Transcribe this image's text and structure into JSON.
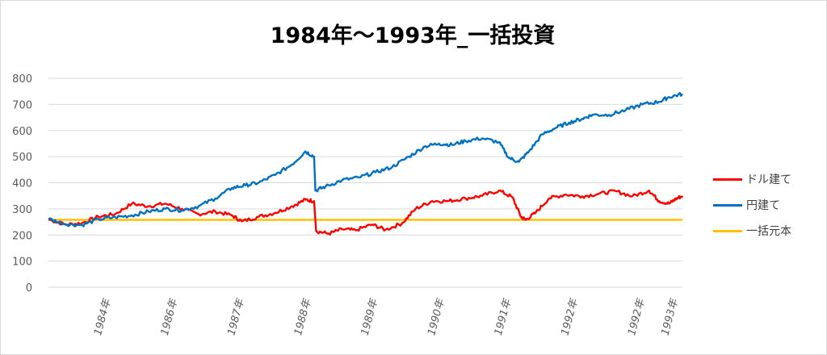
{
  "chart_data": {
    "type": "line",
    "title": "1984年～1993年_一括投資",
    "xlabel": "",
    "ylabel": "",
    "ylim": [
      0,
      800
    ],
    "yticks": [
      0,
      100,
      200,
      300,
      400,
      500,
      600,
      700,
      800
    ],
    "xlim": [
      1983.7,
      1993.2
    ],
    "xtick_labels": [
      {
        "label": "1984年",
        "x": 1984.7
      },
      {
        "label": "1986年",
        "x": 1985.7
      },
      {
        "label": "1987年",
        "x": 1986.7
      },
      {
        "label": "1988年",
        "x": 1987.7
      },
      {
        "label": "1989年",
        "x": 1988.7
      },
      {
        "label": "1990年",
        "x": 1989.7
      },
      {
        "label": "1991年",
        "x": 1990.7
      },
      {
        "label": "1992年",
        "x": 1991.7
      },
      {
        "label": "1992年",
        "x": 1992.7
      },
      {
        "label": "1993年",
        "x": 1993.2
      }
    ],
    "grid": true,
    "legend_position": "right",
    "series": [
      {
        "name": "ドル建て",
        "color": "#ff0000",
        "points": [
          [
            1983.7,
            260
          ],
          [
            1983.95,
            240
          ],
          [
            1984.2,
            245
          ],
          [
            1984.45,
            270
          ],
          [
            1984.7,
            280
          ],
          [
            1984.95,
            320
          ],
          [
            1985.2,
            310
          ],
          [
            1985.45,
            320
          ],
          [
            1985.7,
            300
          ],
          [
            1985.95,
            280
          ],
          [
            1986.2,
            290
          ],
          [
            1986.45,
            275
          ],
          [
            1986.6,
            252
          ],
          [
            1986.85,
            270
          ],
          [
            1987.1,
            285
          ],
          [
            1987.35,
            310
          ],
          [
            1987.55,
            335
          ],
          [
            1987.68,
            330
          ],
          [
            1987.71,
            215
          ],
          [
            1987.9,
            205
          ],
          [
            1988.1,
            222
          ],
          [
            1988.3,
            218
          ],
          [
            1988.55,
            240
          ],
          [
            1988.75,
            220
          ],
          [
            1989.0,
            245
          ],
          [
            1989.2,
            300
          ],
          [
            1989.45,
            330
          ],
          [
            1989.7,
            330
          ],
          [
            1989.95,
            340
          ],
          [
            1990.2,
            350
          ],
          [
            1990.45,
            370
          ],
          [
            1990.65,
            345
          ],
          [
            1990.78,
            270
          ],
          [
            1990.85,
            258
          ],
          [
            1991.0,
            285
          ],
          [
            1991.2,
            340
          ],
          [
            1991.45,
            355
          ],
          [
            1991.7,
            348
          ],
          [
            1991.95,
            358
          ],
          [
            1992.2,
            368
          ],
          [
            1992.45,
            348
          ],
          [
            1992.7,
            370
          ],
          [
            1992.85,
            330
          ],
          [
            1993.0,
            320
          ],
          [
            1993.1,
            338
          ],
          [
            1993.2,
            350
          ]
        ]
      },
      {
        "name": "円建て",
        "color": "#0070c0",
        "points": [
          [
            1983.7,
            262
          ],
          [
            1983.95,
            242
          ],
          [
            1984.2,
            238
          ],
          [
            1984.45,
            260
          ],
          [
            1984.7,
            268
          ],
          [
            1984.95,
            275
          ],
          [
            1985.2,
            290
          ],
          [
            1985.45,
            300
          ],
          [
            1985.7,
            295
          ],
          [
            1985.95,
            310
          ],
          [
            1986.2,
            340
          ],
          [
            1986.45,
            380
          ],
          [
            1986.65,
            390
          ],
          [
            1986.85,
            400
          ],
          [
            1987.1,
            430
          ],
          [
            1987.35,
            470
          ],
          [
            1987.55,
            520
          ],
          [
            1987.68,
            500
          ],
          [
            1987.7,
            370
          ],
          [
            1987.85,
            385
          ],
          [
            1988.1,
            410
          ],
          [
            1988.35,
            420
          ],
          [
            1988.6,
            440
          ],
          [
            1988.85,
            460
          ],
          [
            1989.1,
            500
          ],
          [
            1989.35,
            540
          ],
          [
            1989.55,
            550
          ],
          [
            1989.75,
            545
          ],
          [
            1989.95,
            560
          ],
          [
            1990.2,
            570
          ],
          [
            1990.45,
            555
          ],
          [
            1990.6,
            495
          ],
          [
            1990.75,
            480
          ],
          [
            1990.9,
            520
          ],
          [
            1991.1,
            585
          ],
          [
            1991.3,
            610
          ],
          [
            1991.5,
            630
          ],
          [
            1991.7,
            645
          ],
          [
            1991.85,
            660
          ],
          [
            1992.1,
            660
          ],
          [
            1992.35,
            678
          ],
          [
            1992.6,
            700
          ],
          [
            1992.85,
            710
          ],
          [
            1993.0,
            728
          ],
          [
            1993.2,
            740
          ]
        ]
      },
      {
        "name": "一括元本",
        "color": "#ffc000",
        "points": [
          [
            1983.7,
            258
          ],
          [
            1993.2,
            258
          ]
        ]
      }
    ]
  }
}
